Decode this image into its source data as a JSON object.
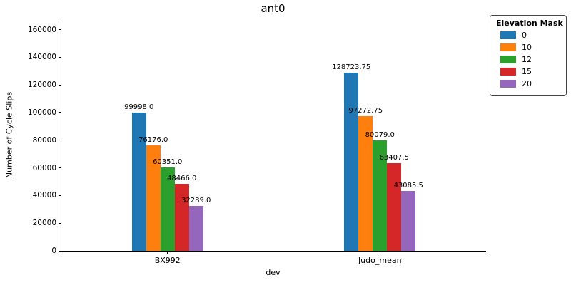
{
  "chart_data": {
    "type": "bar",
    "title": "ant0",
    "xlabel": "dev",
    "ylabel": "Number of Cycle Slips",
    "categories": [
      "BX992",
      "Judo_mean"
    ],
    "series": [
      {
        "name": "0",
        "color": "#1f77b4",
        "values": [
          99998.0,
          128723.75
        ],
        "labels": [
          "99998.0",
          "128723.75"
        ]
      },
      {
        "name": "10",
        "color": "#ff7f0e",
        "values": [
          76176.0,
          97272.75
        ],
        "labels": [
          "76176.0",
          "97272.75"
        ]
      },
      {
        "name": "12",
        "color": "#2ca02c",
        "values": [
          60351.0,
          80079.0
        ],
        "labels": [
          "60351.0",
          "80079.0"
        ]
      },
      {
        "name": "15",
        "color": "#d62728",
        "values": [
          48466.0,
          63407.5
        ],
        "labels": [
          "48466.0",
          "63407.5"
        ]
      },
      {
        "name": "20",
        "color": "#9467bd",
        "values": [
          32289.0,
          43085.5
        ],
        "labels": [
          "32289.0",
          "43085.5"
        ]
      }
    ],
    "yticks": [
      0,
      20000,
      40000,
      60000,
      80000,
      100000,
      120000,
      140000,
      160000
    ],
    "ylim": [
      0,
      167000
    ],
    "grid": false,
    "legend": {
      "title": "Elevation Mask",
      "position": "outside-upper-right"
    }
  }
}
